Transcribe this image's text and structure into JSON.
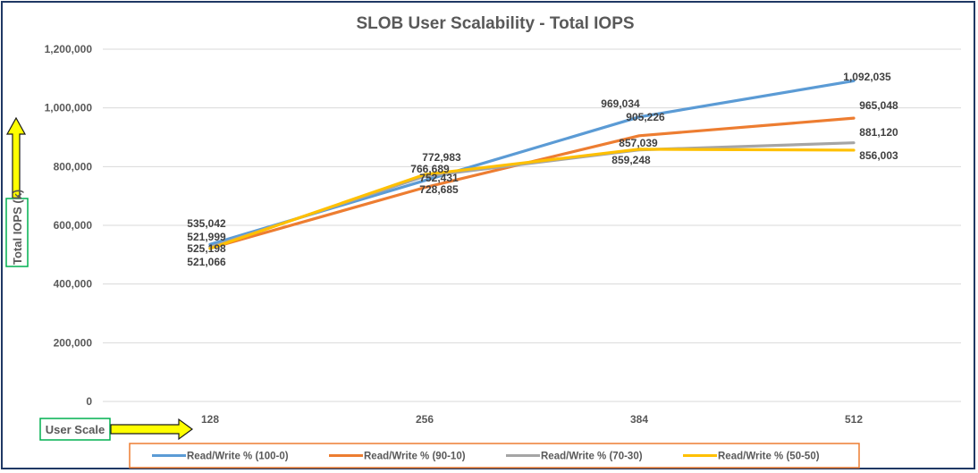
{
  "chart_data": {
    "type": "line",
    "title": "SLOB User Scalability - Total IOPS",
    "xlabel": "User Scale",
    "ylabel": "Total IOPS (k)",
    "categories": [
      "128",
      "256",
      "384",
      "512"
    ],
    "ylim": [
      0,
      1200000
    ],
    "yticks": [
      0,
      200000,
      400000,
      600000,
      800000,
      1000000,
      1200000
    ],
    "ytick_labels": [
      "0",
      "200,000",
      "400,000",
      "600,000",
      "800,000",
      "1,000,000",
      "1,200,000"
    ],
    "grid": true,
    "legend_position": "bottom",
    "series": [
      {
        "name": "Read/Write % (100-0)",
        "color": "#5b9bd5",
        "values": [
          535042,
          752431,
          969034,
          1092035
        ],
        "labels": [
          "535,042",
          "752,431",
          "969,034",
          "1,092,035"
        ]
      },
      {
        "name": "Read/Write % (90-10)",
        "color": "#ed7d31",
        "values": [
          521999,
          728685,
          905226,
          965048
        ],
        "labels": [
          "521,999",
          "728,685",
          "905,226",
          "965,048"
        ]
      },
      {
        "name": "Read/Write % (70-30)",
        "color": "#a5a5a5",
        "values": [
          525198,
          766689,
          857039,
          881120
        ],
        "labels": [
          "525,198",
          "766,689",
          "857,039",
          "881,120"
        ]
      },
      {
        "name": "Read/Write % (50-50)",
        "color": "#ffc000",
        "values": [
          521066,
          772983,
          859248,
          856003
        ],
        "labels": [
          "521,066",
          "772,983",
          "859,248",
          "856,003"
        ]
      }
    ],
    "annotations": {
      "y_axis_box": "Total IOPS (k)",
      "x_axis_box": "User Scale",
      "arrow_color": "#ffff00",
      "box_border_color": "#00b050"
    }
  }
}
